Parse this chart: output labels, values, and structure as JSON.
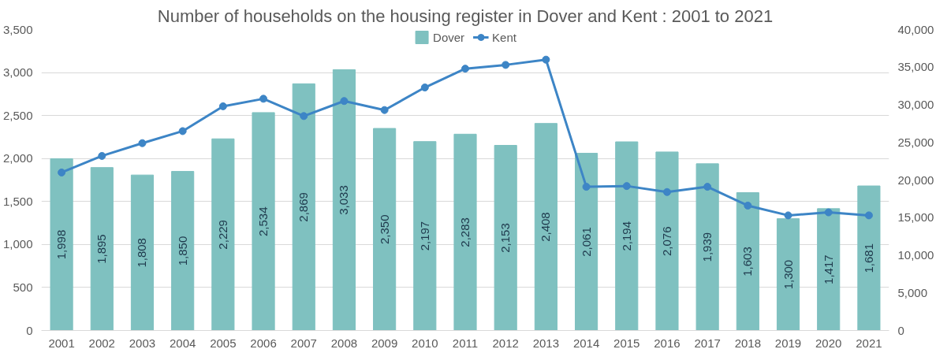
{
  "chart_data": {
    "type": "bar",
    "title": "Number of households on the housing register in Dover and Kent : 2001 to 2021",
    "categories": [
      "2001",
      "2002",
      "2003",
      "2004",
      "2005",
      "2006",
      "2007",
      "2008",
      "2009",
      "2010",
      "2011",
      "2012",
      "2013",
      "2014",
      "2015",
      "2016",
      "2017",
      "2018",
      "2019",
      "2020",
      "2021"
    ],
    "series": [
      {
        "name": "Dover",
        "color": "#7fc1c0",
        "values": [
          1998,
          1895,
          1808,
          1850,
          2229,
          2534,
          2869,
          3033,
          2350,
          2197,
          2283,
          2153,
          2408,
          2061,
          2194,
          2076,
          1939,
          1603,
          1300,
          1417,
          1681
        ]
      },
      {
        "name": "Kent",
        "type": "line",
        "axis": "y2",
        "color": "#3d85c6",
        "values": [
          21000,
          23200,
          24900,
          26500,
          29800,
          30800,
          28500,
          30500,
          29300,
          32300,
          34800,
          35300,
          36000,
          19100,
          19200,
          18400,
          19100,
          16600,
          15300,
          15700,
          15300
        ]
      }
    ],
    "ylim": [
      0,
      3500
    ],
    "yticks": [
      0,
      500,
      {
        "value": 1000,
        "label": "1,000"
      },
      {
        "value": 1500,
        "label": "1,500"
      },
      {
        "value": 2000,
        "label": "2,000"
      },
      {
        "value": 2500,
        "label": "2,500"
      },
      {
        "value": 3000,
        "label": "3,000"
      },
      {
        "value": 3500,
        "label": "3,500"
      }
    ],
    "y2lim": [
      0,
      40000
    ],
    "y2ticks": [
      0,
      {
        "value": 5000,
        "label": "5,000"
      },
      {
        "value": 10000,
        "label": "10,000"
      },
      {
        "value": 15000,
        "label": "15,000"
      },
      {
        "value": 20000,
        "label": "20,000"
      },
      {
        "value": 25000,
        "label": "25,000"
      },
      {
        "value": 30000,
        "label": "30,000"
      },
      {
        "value": 35000,
        "label": "35,000"
      },
      {
        "value": 40000,
        "label": "40,000"
      }
    ],
    "value_labels": [
      "1,998",
      "1,895",
      "1,808",
      "1,850",
      "2,229",
      "2,534",
      "2,869",
      "3,033",
      "2,350",
      "2,197",
      "2,283",
      "2,153",
      "2,408",
      "2,061",
      "2,194",
      "2,076",
      "1,939",
      "1,603",
      "1,300",
      "1,417",
      "1,681"
    ],
    "grid": "y",
    "legend": "top",
    "marker": "circle",
    "line_style": "solid"
  }
}
